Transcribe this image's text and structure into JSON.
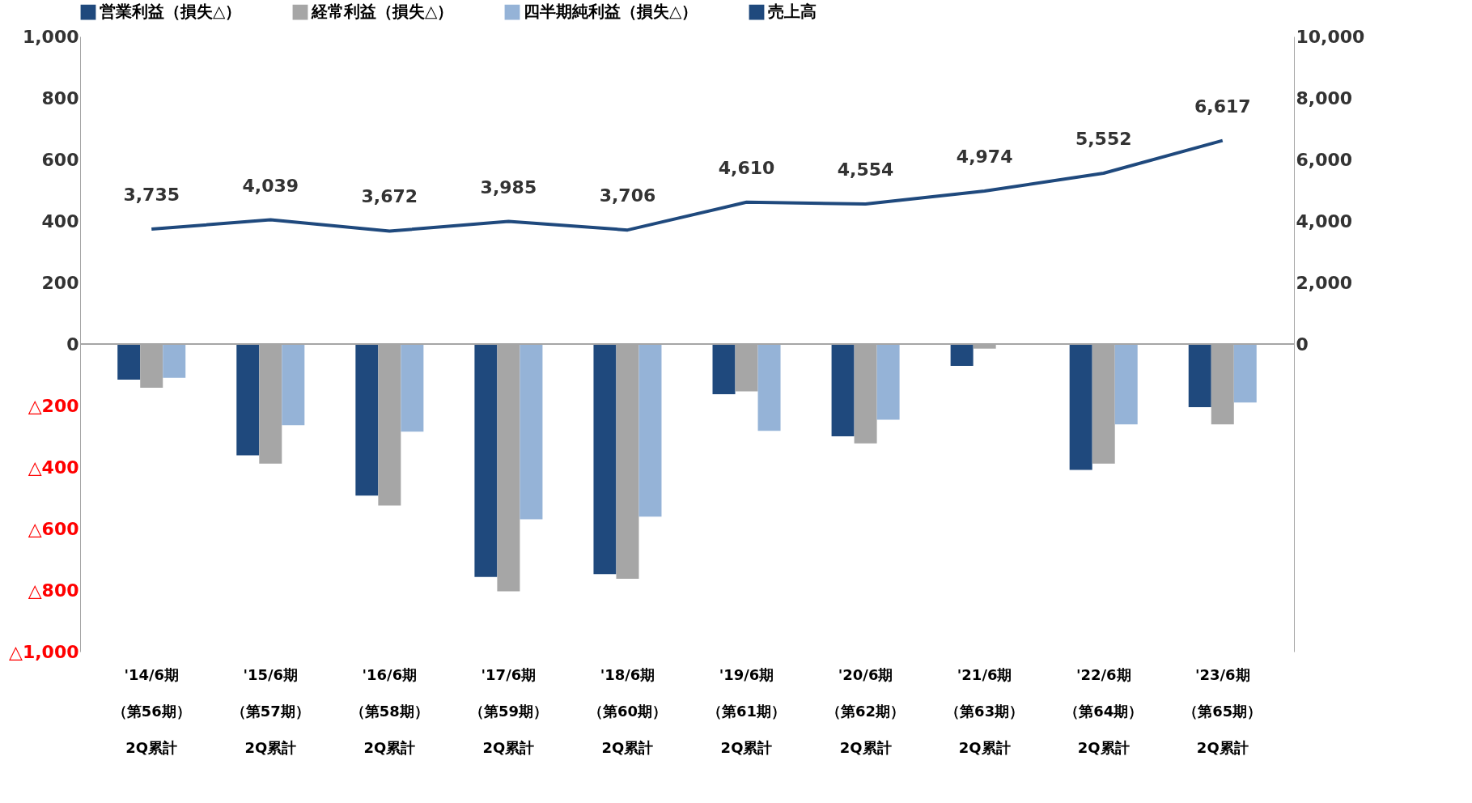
{
  "chart_data": {
    "type": "bar",
    "categories": [
      "'14/6期（第56期）2Q累計",
      "'15/6期（第57期）2Q累計",
      "'16/6期（第58期）2Q累計",
      "'17/6期（第59期）2Q累計",
      "'18/6期（第60期）2Q累計",
      "'19/6期（第61期）2Q累計",
      "'20/6期（第62期）2Q累計",
      "'21/6期（第63期）2Q累計",
      "'22/6期（第64期）2Q累計",
      "'23/6期（第65期）2Q累計"
    ],
    "series": [
      {
        "name": "営業利益（損失△）",
        "color": "#1f497d",
        "values": [
          -116,
          -362,
          -493,
          -757,
          -748,
          -163,
          -300,
          -71,
          -409,
          -205
        ]
      },
      {
        "name": "経常利益（損失△）",
        "color": "#a6a6a6",
        "values": [
          -142,
          -389,
          -525,
          -804,
          -763,
          -154,
          -323,
          -15,
          -389,
          -261
        ]
      },
      {
        "name": "四半期純利益（損失△）",
        "color": "#95b3d7",
        "values": [
          -110,
          -264,
          -285,
          -570,
          -561,
          -282,
          -246,
          null,
          -261,
          -190
        ]
      },
      {
        "name": "売上高",
        "type": "line",
        "axis": "y2",
        "color": "#1f497d",
        "values": [
          3735,
          4039,
          3672,
          3985,
          3706,
          4610,
          4554,
          4974,
          5552,
          6617
        ],
        "value_labels": [
          "3,735",
          "4,039",
          "3,672",
          "3,985",
          "3,706",
          "4,610",
          "4,554",
          "4,974",
          "5,552",
          "6,617"
        ]
      }
    ],
    "ylim": [
      -1000,
      1000
    ],
    "yticks": [
      {
        "value": 1000,
        "label": "1,000"
      },
      800,
      600,
      400,
      200,
      0,
      {
        "value": -200,
        "label": "△200"
      },
      {
        "value": -400,
        "label": "△400"
      },
      {
        "value": -600,
        "label": "△600"
      },
      {
        "value": -800,
        "label": "△800"
      },
      {
        "value": -1000,
        "label": "△1,000"
      }
    ],
    "y2lim": [
      -10000,
      10000
    ],
    "y2ticks": [
      {
        "value": 10000,
        "label": "10,000"
      },
      {
        "value": 8000,
        "label": "8,000"
      },
      {
        "value": 6000,
        "label": "6,000"
      },
      {
        "value": 4000,
        "label": "4,000"
      },
      {
        "value": 2000,
        "label": "2,000"
      },
      0
    ],
    "ref_lines": [
      {
        "axis": "y",
        "value": 0,
        "color": "#a6a6a6"
      }
    ],
    "legend": "top",
    "grid": false
  }
}
